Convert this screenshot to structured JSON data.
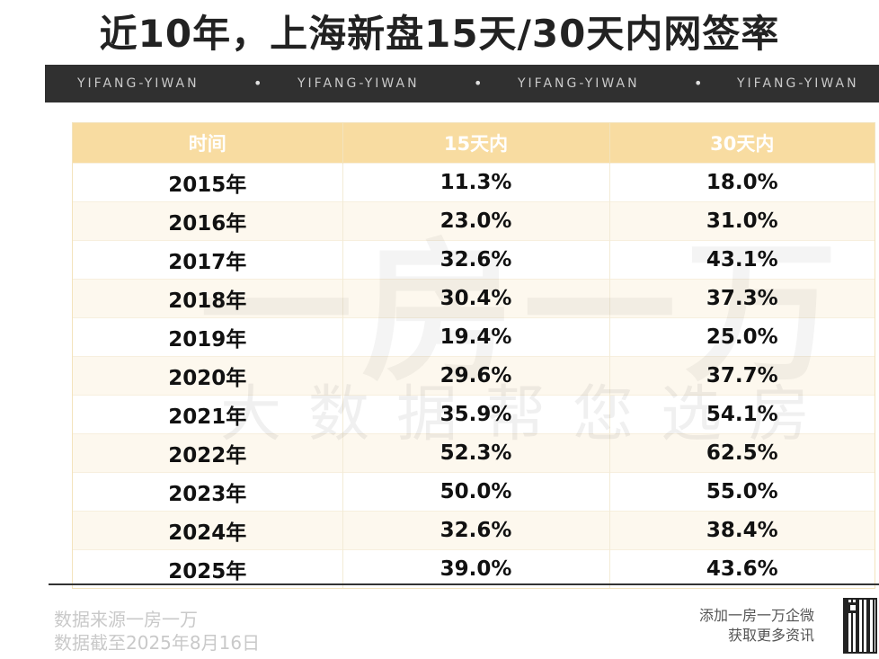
{
  "title": "近10年，上海新盘15天/30天内网签率",
  "banner": {
    "items": [
      "YIFANG-YIWAN",
      "YIFANG-YIWAN",
      "YIFANG-YIWAN",
      "YIFANG-YIWAN"
    ],
    "separator": "•"
  },
  "table": {
    "headers": [
      "时间",
      "15天内",
      "30天内"
    ],
    "rows": [
      [
        "2015年",
        "11.3%",
        "18.0%"
      ],
      [
        "2016年",
        "23.0%",
        "31.0%"
      ],
      [
        "2017年",
        "32.6%",
        "43.1%"
      ],
      [
        "2018年",
        "30.4%",
        "37.3%"
      ],
      [
        "2019年",
        "19.4%",
        "25.0%"
      ],
      [
        "2020年",
        "29.6%",
        "37.7%"
      ],
      [
        "2021年",
        "35.9%",
        "54.1%"
      ],
      [
        "2022年",
        "52.3%",
        "62.5%"
      ],
      [
        "2023年",
        "50.0%",
        "55.0%"
      ],
      [
        "2024年",
        "32.6%",
        "38.4%"
      ],
      [
        "2025年",
        "39.0%",
        "43.6%"
      ]
    ]
  },
  "watermark": {
    "big": "一房一万",
    "small": "大数据帮您选房"
  },
  "footer": {
    "source_line1": "数据来源一房一万",
    "source_line2": "数据截至2025年8月16日",
    "contact_line1": "添加一房一万企微",
    "contact_line2": "获取更多资讯"
  },
  "colors": {
    "header_bg": "#f8dca1",
    "banner_bg": "#303030",
    "stripe": "#fdf8ee"
  }
}
